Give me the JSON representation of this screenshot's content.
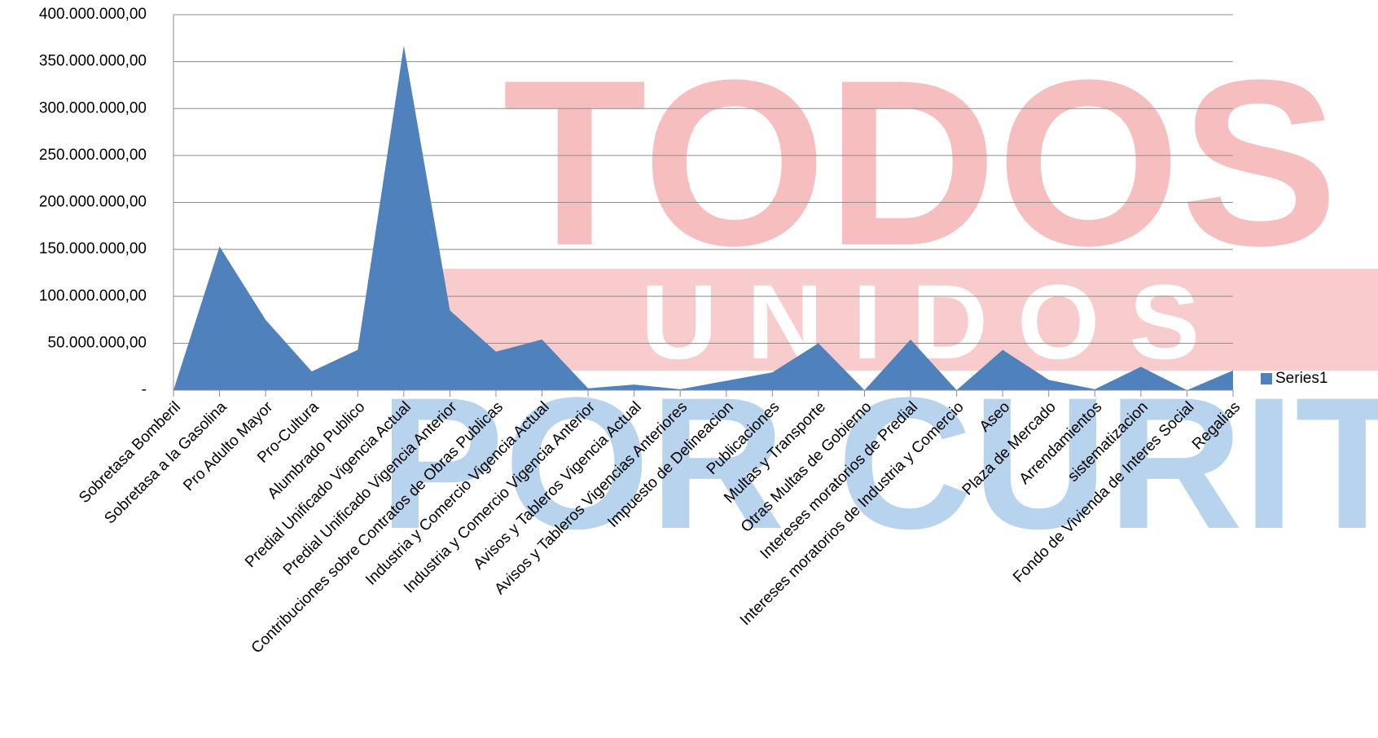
{
  "chart_data": {
    "type": "area",
    "watermark": {
      "top": "TODOS",
      "middle": "U N I D O S",
      "bottom": "POR CURITI"
    },
    "categories": [
      "Sobretasa Bomberil",
      "Sobretasa a la Gasolina",
      "Pro Adulto Mayor",
      "Pro-Cultura",
      "Alumbrado Publico",
      "Predial Unificado Vigencia Actual",
      "Predial Unificado Vigencia Anterior",
      "Contribuciones sobre Contratos de Obras Publicas",
      "Industria y Comercio Vigencia Actual",
      "Industria y Comercio Vigencia Anterior",
      "Avisos y Tableros Vigencia Actual",
      "Avisos y Tableros Vigencias Anteriores",
      "Impuesto de Delineacion",
      "Publicaciones",
      "Multas y Transporte",
      "Otras Multas de Gobierno",
      "Intereses moratorios de Predial",
      "Intereses moratorios de Industria y Comercio",
      "Aseo",
      "Plaza de Mercado",
      "Arrendamientos",
      "sistematizacion",
      "Fondo de Vivienda de Interes Social",
      "Regalias"
    ],
    "series": [
      {
        "name": "Series1",
        "color": "#4f81bd",
        "values": [
          0,
          153000000,
          75000000,
          20000000,
          43000000,
          367000000,
          85000000,
          41000000,
          54000000,
          2000000,
          6000000,
          1000000,
          10000000,
          19000000,
          50000000,
          0,
          54000000,
          0,
          43000000,
          11000000,
          1000000,
          25000000,
          0,
          21000000
        ]
      }
    ],
    "ylim": [
      0,
      400000000
    ],
    "yticks": [
      {
        "value": 0,
        "label": "-"
      },
      {
        "value": 50000000,
        "label": "50.000.000,00"
      },
      {
        "value": 100000000,
        "label": "100.000.000,00"
      },
      {
        "value": 150000000,
        "label": "150.000.000,00"
      },
      {
        "value": 200000000,
        "label": "200.000.000,00"
      },
      {
        "value": 250000000,
        "label": "250.000.000,00"
      },
      {
        "value": 300000000,
        "label": "300.000.000,00"
      },
      {
        "value": 350000000,
        "label": "350.000.000,00"
      },
      {
        "value": 400000000,
        "label": "400.000.000,00"
      }
    ],
    "grid": true,
    "legend": "right"
  }
}
